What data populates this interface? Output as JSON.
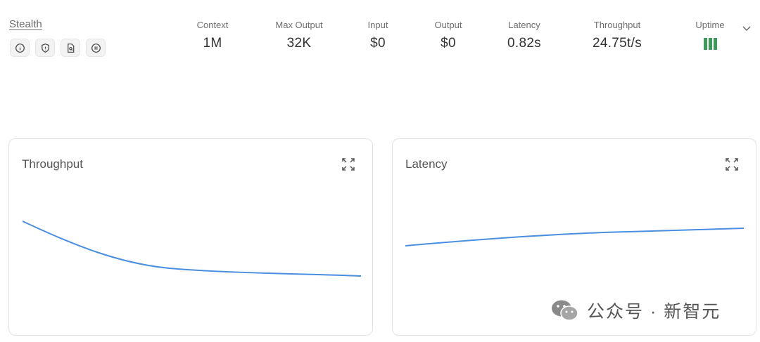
{
  "provider": {
    "name": "Stealth"
  },
  "provider_icons": [
    "info-icon",
    "shield-icon",
    "document-search-icon",
    "pause-icon"
  ],
  "stats": [
    {
      "label": "Context",
      "value": "1M"
    },
    {
      "label": "Max Output",
      "value": "32K"
    },
    {
      "label": "Input",
      "value": "$0"
    },
    {
      "label": "Output",
      "value": "$0"
    },
    {
      "label": "Latency",
      "value": "0.82s"
    },
    {
      "label": "Throughput",
      "value": "24.75t/s"
    },
    {
      "label": "Uptime",
      "value": ""
    }
  ],
  "colors": {
    "accent_line": "#4a8ee0",
    "uptime_green": "#3e9a5a"
  },
  "charts": {
    "throughput": {
      "title": "Throughput"
    },
    "latency": {
      "title": "Latency"
    }
  },
  "watermark": {
    "text": "公众号 · 新智元"
  }
}
